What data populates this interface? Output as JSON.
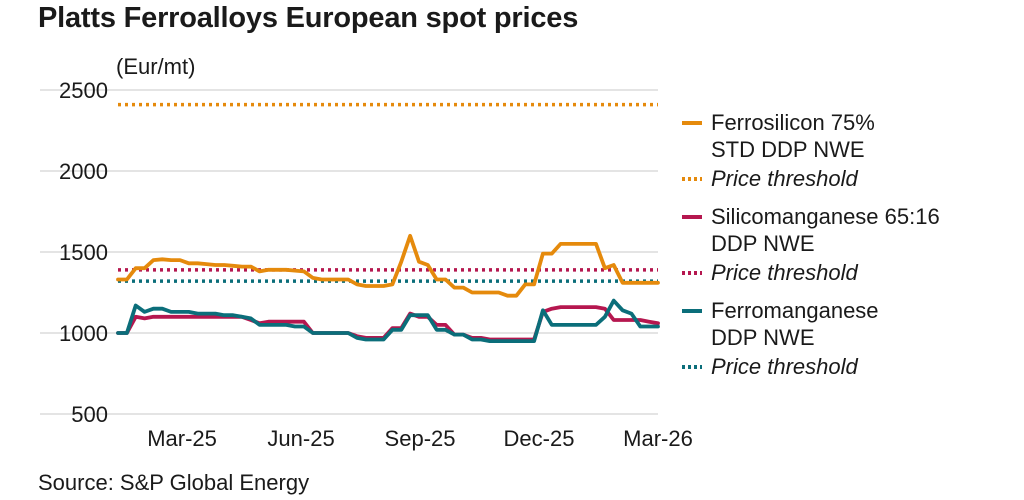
{
  "title": "Platts Ferroalloys European spot prices",
  "unit_label": "(Eur/mt)",
  "source": "Source: S&P Global Energy",
  "chart_data": {
    "type": "line",
    "title": "Platts Ferroalloys European spot prices",
    "ylabel": "(Eur/mt)",
    "ylim": [
      500,
      2500
    ],
    "yticks": [
      "2500",
      "2000",
      "1500",
      "1000",
      "500"
    ],
    "ytick_values": [
      2500,
      2000,
      1500,
      1000,
      500
    ],
    "xlim": [
      0,
      59
    ],
    "xtick_labels": [
      "Mar-25",
      "Jun-25",
      "Sep-25",
      "Dec-25",
      "Mar-26"
    ],
    "xtick_positions": [
      7,
      20,
      33,
      46,
      59
    ],
    "grid": "horizontal",
    "legend_position": "right",
    "series": [
      {
        "name": "Ferrosilicon 75% STD DDP NWE",
        "label_lines": [
          "Ferrosilicon 75%",
          "STD DDP NWE"
        ],
        "color": "#e58a0c",
        "style": "solid",
        "values": [
          1330,
          1330,
          1400,
          1400,
          1450,
          1455,
          1450,
          1450,
          1430,
          1430,
          1425,
          1420,
          1420,
          1415,
          1410,
          1410,
          1380,
          1390,
          1390,
          1390,
          1385,
          1380,
          1340,
          1330,
          1330,
          1330,
          1330,
          1300,
          1290,
          1290,
          1290,
          1300,
          1440,
          1600,
          1440,
          1420,
          1330,
          1330,
          1280,
          1280,
          1250,
          1250,
          1250,
          1250,
          1230,
          1230,
          1300,
          1300,
          1490,
          1490,
          1550,
          1550,
          1550,
          1550,
          1550,
          1400,
          1420,
          1310,
          1310,
          1310,
          1310,
          1310
        ]
      },
      {
        "name": "Price threshold",
        "label_lines": [
          "Price threshold"
        ],
        "color": "#e58a0c",
        "style": "dotted",
        "values": [
          2410,
          2410
        ]
      },
      {
        "name": "Silicomanganese 65:16 DDP NWE",
        "label_lines": [
          "Silicomanganese 65:16",
          "DDP NWE"
        ],
        "color": "#b5174f",
        "style": "solid",
        "values": [
          1000,
          1000,
          1100,
          1090,
          1100,
          1100,
          1100,
          1100,
          1100,
          1100,
          1100,
          1100,
          1100,
          1100,
          1100,
          1080,
          1060,
          1070,
          1070,
          1070,
          1070,
          1070,
          1000,
          1000,
          1000,
          1000,
          1000,
          980,
          970,
          970,
          970,
          1030,
          1030,
          1120,
          1100,
          1100,
          1050,
          1050,
          990,
          990,
          970,
          970,
          960,
          960,
          960,
          960,
          960,
          960,
          1130,
          1150,
          1160,
          1160,
          1160,
          1160,
          1160,
          1150,
          1080,
          1080,
          1080,
          1080,
          1070,
          1060
        ]
      },
      {
        "name": "Price threshold",
        "label_lines": [
          "Price threshold"
        ],
        "color": "#b5174f",
        "style": "dotted",
        "values": [
          1390,
          1390
        ]
      },
      {
        "name": "Ferromanganese DDP NWE",
        "label_lines": [
          "Ferromanganese",
          "DDP NWE"
        ],
        "color": "#0b6e7a",
        "style": "solid",
        "values": [
          1000,
          1000,
          1170,
          1130,
          1150,
          1150,
          1130,
          1130,
          1130,
          1120,
          1120,
          1120,
          1110,
          1110,
          1100,
          1090,
          1050,
          1050,
          1050,
          1050,
          1040,
          1040,
          1000,
          1000,
          1000,
          1000,
          1000,
          970,
          960,
          960,
          960,
          1020,
          1020,
          1110,
          1110,
          1110,
          1020,
          1020,
          990,
          990,
          960,
          960,
          950,
          950,
          950,
          950,
          950,
          950,
          1140,
          1050,
          1050,
          1050,
          1050,
          1050,
          1050,
          1100,
          1200,
          1140,
          1120,
          1040,
          1040,
          1040
        ]
      },
      {
        "name": "Price threshold",
        "label_lines": [
          "Price threshold"
        ],
        "color": "#0b6e7a",
        "style": "dotted",
        "values": [
          1320,
          1320
        ]
      }
    ]
  }
}
